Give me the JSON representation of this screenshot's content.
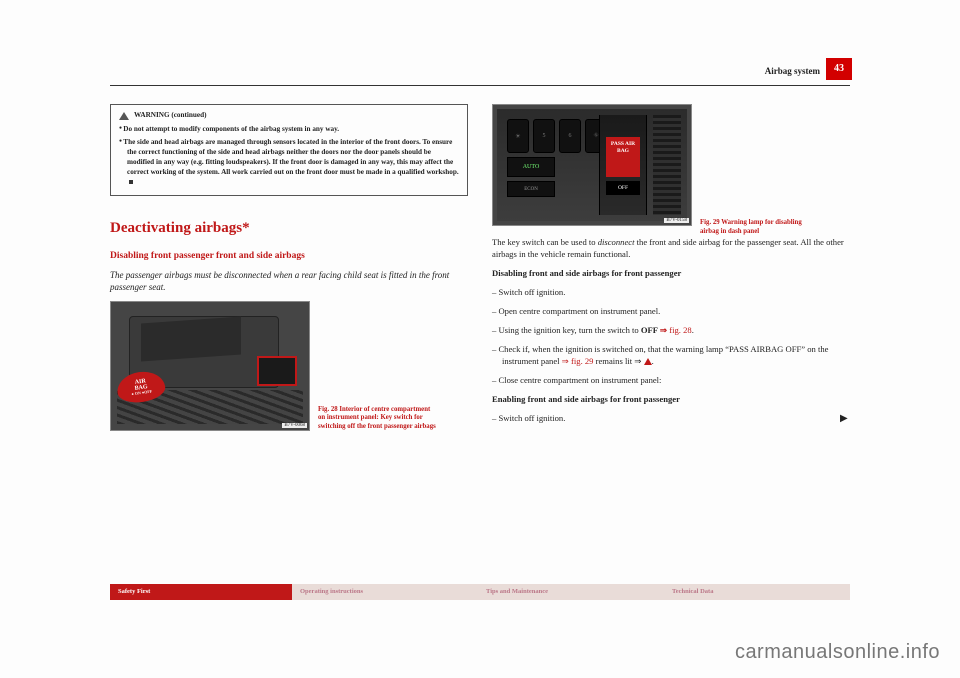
{
  "header": {
    "section": "Airbag system",
    "page": "43"
  },
  "warning": {
    "title": "WARNING (continued)",
    "b1": "Do not attempt to modify components of the airbag system in any way.",
    "b2": "The side and head airbags are managed through sensors located in the interior of the front doors. To ensure the correct functioning of the side and head airbags neither the doors nor the door panels should be modified in any way (e.g. fitting loudspeakers). If the front door is damaged in any way, this may affect the correct working of the system. All work carried out on the front door must be made in a qualified workshop."
  },
  "h2": "Deactivating airbags*",
  "h3": "Disabling front passenger front and side airbags",
  "intro": "The passenger airbags must be disconnected when a rear facing child seat is fitted in the front passenger seat.",
  "fig28": {
    "badge_l1": "AIR",
    "badge_l2": "BAG",
    "badge_r": " ● ON\n●OFF",
    "ref": "B7V-0068",
    "caption": "Fig. 28   Interior of centre compartment on instrument panel: Key switch for switching off the front passenger airbags"
  },
  "fig29": {
    "btns": [
      "☀",
      "5",
      "6",
      "⛗"
    ],
    "auto": "AUTO",
    "econ": "ECON",
    "pass": "PASS\nAIR BAG",
    "off": "OFF",
    "ref": "B7V-0158",
    "caption": "Fig. 29   Warning lamp for disabling airbag in dash panel"
  },
  "right": {
    "p1a": "The key switch can be used to ",
    "p1b": "disconnect",
    "p1c": " the front and side airbag for the passenger seat. All the other airbags in the vehicle remain functional.",
    "h4a": "Disabling front and side airbags for front passenger",
    "li1": "Switch off ignition.",
    "li2": "Open centre compartment on instrument panel.",
    "li3a": "Using the ignition key, turn the switch to ",
    "li3b": "OFF",
    "li3c": " ⇒ ",
    "li3d": "fig. 28",
    "li3e": ".",
    "li4a": "Check if, when the ignition is switched on, that the warning lamp “PASS AIRBAG OFF” on the instrument panel ",
    "li4b": "⇒ fig. 29",
    "li4c": " remains lit ⇒ ",
    "li5": "Close centre compartment on instrument panel:",
    "h4b": "Enabling front and side airbags for front passenger",
    "li6": "Switch off ignition."
  },
  "footer": {
    "t1": "Safety First",
    "t2": "Operating instructions",
    "t3": "Tips and Maintenance",
    "t4": "Technical Data"
  },
  "watermark": "carmanualsonline.info"
}
